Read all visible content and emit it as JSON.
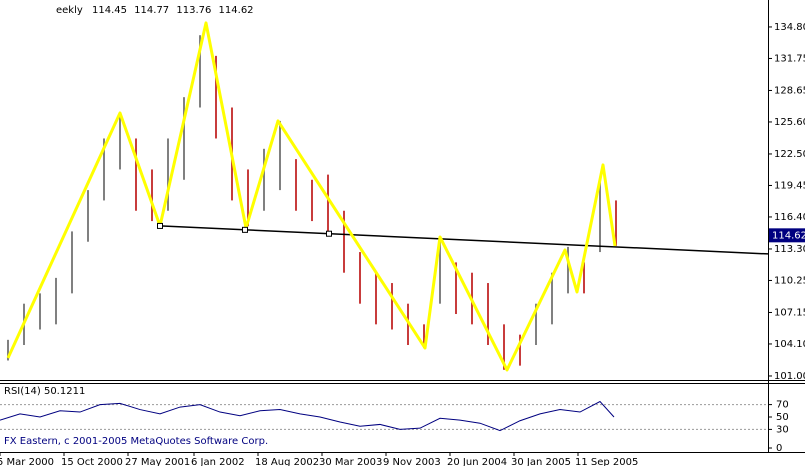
{
  "chart_data": [
    {
      "type": "range_bars",
      "title": "eekly",
      "header_values": [
        114.45,
        114.77,
        113.76,
        114.62
      ],
      "x": [
        4,
        12,
        20,
        28,
        36,
        44,
        52,
        60,
        68,
        76,
        84,
        92,
        100,
        108,
        116,
        124,
        132,
        140,
        148,
        156,
        164,
        172,
        180,
        188,
        196,
        204,
        212,
        220,
        228,
        236,
        244,
        252,
        260,
        268,
        276,
        284,
        292,
        300,
        308
      ],
      "high": [
        104.5,
        108,
        109,
        110.5,
        115,
        119,
        124,
        126.5,
        124,
        121,
        124,
        128,
        134,
        132,
        127,
        121,
        123,
        125.7,
        122,
        120,
        120.5,
        117,
        113,
        111,
        110,
        108,
        106,
        114.5,
        112,
        111,
        110,
        106,
        105,
        108,
        111,
        113.5,
        112,
        120,
        118
      ],
      "low": [
        102.5,
        104,
        105.5,
        106,
        109,
        114,
        118,
        121,
        117,
        116,
        117,
        120,
        127,
        124,
        118,
        115.5,
        117,
        119,
        117,
        116,
        115,
        111,
        108,
        106,
        105.5,
        104,
        103.7,
        108,
        107,
        106,
        104,
        101.6,
        102,
        104,
        106,
        109,
        109,
        113,
        113.6
      ],
      "up_color": "#808080",
      "down_color": "#c83c3c",
      "zigzag": {
        "color": "#ffff00",
        "x": [
          4,
          60,
          80,
          103,
          123,
          139,
          212.5,
          220,
          253.5,
          282.5,
          288.5,
          301.5,
          307.5
        ],
        "values": [
          102.74,
          126.47,
          115.53,
          135.19,
          115.33,
          125.7,
          103.71,
          114.46,
          101.58,
          113.2,
          109.14,
          121.44,
          113.59
        ]
      },
      "trendline": {
        "color": "#000000",
        "x": [
          80,
          384
        ],
        "values": [
          115.53,
          112.82
        ],
        "anchors": [
          80,
          122.5,
          164.5
        ]
      },
      "last_price": 114.62,
      "xlim": [
        0,
        384
      ],
      "xticks": [
        {
          "value": 0,
          "label": "5 Mar 2000"
        },
        {
          "value": 32,
          "label": "15 Oct 2000"
        },
        {
          "value": 64,
          "label": "27 May 2001"
        },
        {
          "value": 97,
          "label": "6 Jan 2002"
        },
        {
          "value": 129,
          "label": "18 Aug 2002"
        },
        {
          "value": 161,
          "label": "30 Mar 2003"
        },
        {
          "value": 193,
          "label": "9 Nov 2003"
        },
        {
          "value": 225,
          "label": "20 Jun 2004"
        },
        {
          "value": 257,
          "label": "30 Jan 2005"
        },
        {
          "value": 289,
          "label": "11 Sep 2005"
        }
      ],
      "ylim": [
        100.61,
        137.41
      ],
      "yticks": [
        {
          "value": 134.8,
          "label": "134.80"
        },
        {
          "value": 131.75,
          "label": "131.75"
        },
        {
          "value": 128.65,
          "label": "128.65"
        },
        {
          "value": 125.6,
          "label": "125.60"
        },
        {
          "value": 122.5,
          "label": "122.50"
        },
        {
          "value": 119.45,
          "label": "119.45"
        },
        {
          "value": 116.4,
          "label": "116.40"
        },
        {
          "value": 113.3,
          "label": "113.30"
        },
        {
          "value": 110.25,
          "label": "110.25"
        },
        {
          "value": 107.15,
          "label": "107.15"
        },
        {
          "value": 104.1,
          "label": "104.10"
        },
        {
          "value": 101,
          "label": "101.00"
        }
      ]
    },
    {
      "type": "line",
      "title": "RSI(14) 50.1211",
      "note": "FX Eastern, c 2001-2005 MetaQuotes Software Corp.",
      "color": "#000080",
      "x": [
        0,
        10,
        20,
        30,
        40,
        50,
        60,
        70,
        80,
        90,
        100,
        110,
        120,
        130,
        140,
        150,
        160,
        170,
        180,
        190,
        200,
        210,
        220,
        230,
        240,
        250,
        260,
        270,
        280,
        290,
        300,
        307
      ],
      "values": [
        45,
        55,
        50,
        60,
        58,
        70,
        72,
        62,
        55,
        66,
        70,
        58,
        52,
        60,
        62,
        55,
        50,
        42,
        35,
        38,
        30,
        32,
        48,
        45,
        40,
        28,
        44,
        55,
        62,
        58,
        75,
        50
      ],
      "ylim": [
        0,
        100
      ],
      "yticks": [
        70,
        50,
        30,
        0
      ],
      "levels": [
        70,
        30
      ]
    }
  ]
}
